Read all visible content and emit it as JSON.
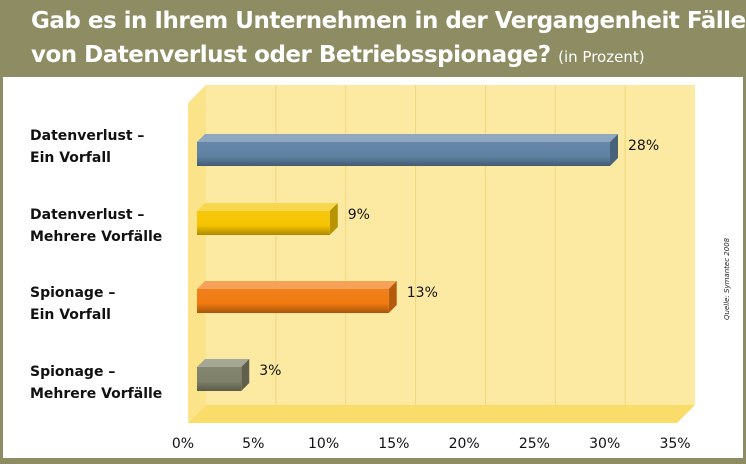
{
  "header": {
    "title_line1": "Gab es in Ihrem Unternehmen in der Vergangenheit Fälle",
    "title_line2": "von Datenverlust oder Betriebsspionage?",
    "subtitle": "(in Prozent)"
  },
  "source": "Quelle: Symantec 2008",
  "chart_data": {
    "type": "bar",
    "orientation": "horizontal",
    "style": "3d",
    "title": "Gab es in Ihrem Unternehmen in der Vergangenheit Fälle von Datenverlust oder Betriebsspionage?",
    "subtitle": "(in Prozent)",
    "categories": [
      [
        "Datenverlust –",
        "Ein Vorfall"
      ],
      [
        "Datenverlust –",
        "Mehrere Vorfälle"
      ],
      [
        "Spionage –",
        "Ein Vorfall"
      ],
      [
        "Spionage –",
        "Mehrere Vorfälle"
      ]
    ],
    "values": [
      28,
      9,
      13,
      3
    ],
    "data_labels": [
      "28%",
      "9%",
      "13%",
      "3%"
    ],
    "colors": [
      "#5f82a3",
      "#f5c400",
      "#f07a10",
      "#7f8068"
    ],
    "xlim": [
      0,
      35
    ],
    "ticks": [
      "0%",
      "5%",
      "10%",
      "15%",
      "20%",
      "25%",
      "30%",
      "35%"
    ],
    "grid": true
  }
}
